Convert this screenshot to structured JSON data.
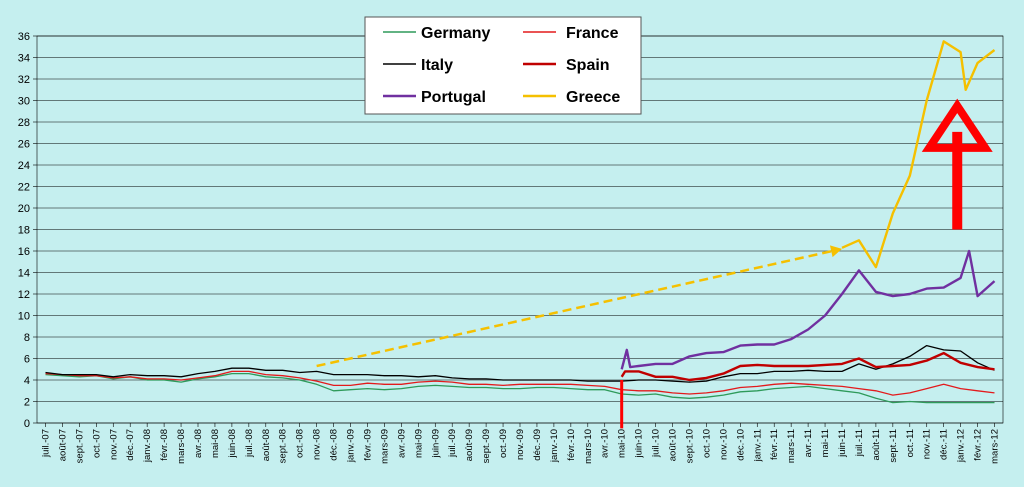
{
  "chart_data": {
    "type": "line",
    "title": "",
    "xlabel": "",
    "ylabel": "",
    "ylim": [
      0,
      36
    ],
    "yticks": [
      0,
      2,
      4,
      6,
      8,
      10,
      12,
      14,
      16,
      18,
      20,
      22,
      24,
      26,
      28,
      30,
      32,
      34,
      36
    ],
    "grid": true,
    "legend_position": "top-center",
    "x_labels": [
      "juil.-07",
      "août-07",
      "sept.-07",
      "oct.-07",
      "nov.-07",
      "déc.-07",
      "janv.-08",
      "févr.-08",
      "mars-08",
      "avr.-08",
      "mai-08",
      "juin-08",
      "juil.-08",
      "août-08",
      "sept.-08",
      "oct.-08",
      "nov.-08",
      "déc.-08",
      "janv.-09",
      "févr.-09",
      "mars-09",
      "avr.-09",
      "mai-09",
      "juin-09",
      "juil.-09",
      "août-09",
      "sept.-09",
      "oct.-09",
      "nov.-09",
      "déc.-09",
      "janv.-10",
      "févr.-10",
      "mars-10",
      "avr.-10",
      "mai-10",
      "juin-10",
      "juil.-10",
      "août-10",
      "sept.-10",
      "oct.-10",
      "nov.-10",
      "déc.-10",
      "janv.-11",
      "févr.-11",
      "mars-11",
      "avr.-11",
      "mai-11",
      "juin-11",
      "juil.-11",
      "août-11",
      "sept.-11",
      "oct.-11",
      "nov.-11",
      "déc.-11",
      "janv.-12",
      "févr.-12",
      "mars-12"
    ],
    "series": [
      {
        "name": "Germany",
        "color": "#2e9a5a",
        "width": 1.3,
        "points": [
          [
            0,
            4.5
          ],
          [
            1,
            4.4
          ],
          [
            2,
            4.3
          ],
          [
            3,
            4.4
          ],
          [
            4,
            4.1
          ],
          [
            5,
            4.3
          ],
          [
            6,
            4.0
          ],
          [
            7,
            4.0
          ],
          [
            8,
            3.8
          ],
          [
            9,
            4.1
          ],
          [
            10,
            4.3
          ],
          [
            11,
            4.6
          ],
          [
            12,
            4.6
          ],
          [
            13,
            4.3
          ],
          [
            14,
            4.2
          ],
          [
            15,
            4.0
          ],
          [
            16,
            3.6
          ],
          [
            17,
            3.0
          ],
          [
            18,
            3.1
          ],
          [
            19,
            3.2
          ],
          [
            20,
            3.1
          ],
          [
            21,
            3.2
          ],
          [
            22,
            3.4
          ],
          [
            23,
            3.5
          ],
          [
            24,
            3.4
          ],
          [
            25,
            3.3
          ],
          [
            26,
            3.3
          ],
          [
            27,
            3.2
          ],
          [
            28,
            3.2
          ],
          [
            29,
            3.3
          ],
          [
            30,
            3.3
          ],
          [
            31,
            3.2
          ],
          [
            32,
            3.1
          ],
          [
            33,
            3.1
          ],
          [
            34,
            2.7
          ],
          [
            35,
            2.6
          ],
          [
            36,
            2.7
          ],
          [
            37,
            2.4
          ],
          [
            38,
            2.3
          ],
          [
            39,
            2.4
          ],
          [
            40,
            2.6
          ],
          [
            41,
            2.9
          ],
          [
            42,
            3.0
          ],
          [
            43,
            3.2
          ],
          [
            44,
            3.3
          ],
          [
            45,
            3.4
          ],
          [
            46,
            3.2
          ],
          [
            47,
            3.0
          ],
          [
            48,
            2.8
          ],
          [
            49,
            2.3
          ],
          [
            50,
            1.9
          ],
          [
            51,
            2.0
          ],
          [
            52,
            1.9
          ],
          [
            53,
            1.9
          ],
          [
            54,
            1.9
          ],
          [
            55,
            1.9
          ],
          [
            56,
            1.9
          ]
        ]
      },
      {
        "name": "France",
        "color": "#e31a1c",
        "width": 1.3,
        "points": [
          [
            0,
            4.6
          ],
          [
            1,
            4.5
          ],
          [
            2,
            4.4
          ],
          [
            3,
            4.4
          ],
          [
            4,
            4.2
          ],
          [
            5,
            4.3
          ],
          [
            6,
            4.1
          ],
          [
            7,
            4.1
          ],
          [
            8,
            4.0
          ],
          [
            9,
            4.2
          ],
          [
            10,
            4.4
          ],
          [
            11,
            4.8
          ],
          [
            12,
            4.8
          ],
          [
            13,
            4.5
          ],
          [
            14,
            4.4
          ],
          [
            15,
            4.2
          ],
          [
            16,
            3.9
          ],
          [
            17,
            3.5
          ],
          [
            18,
            3.5
          ],
          [
            19,
            3.7
          ],
          [
            20,
            3.6
          ],
          [
            21,
            3.6
          ],
          [
            22,
            3.8
          ],
          [
            23,
            3.9
          ],
          [
            24,
            3.8
          ],
          [
            25,
            3.6
          ],
          [
            26,
            3.6
          ],
          [
            27,
            3.5
          ],
          [
            28,
            3.6
          ],
          [
            29,
            3.6
          ],
          [
            30,
            3.6
          ],
          [
            31,
            3.6
          ],
          [
            32,
            3.5
          ],
          [
            33,
            3.4
          ],
          [
            34,
            3.1
          ],
          [
            35,
            3.0
          ],
          [
            36,
            3.0
          ],
          [
            37,
            2.8
          ],
          [
            38,
            2.7
          ],
          [
            39,
            2.8
          ],
          [
            40,
            3.0
          ],
          [
            41,
            3.3
          ],
          [
            42,
            3.4
          ],
          [
            43,
            3.6
          ],
          [
            44,
            3.7
          ],
          [
            45,
            3.6
          ],
          [
            46,
            3.5
          ],
          [
            47,
            3.4
          ],
          [
            48,
            3.2
          ],
          [
            49,
            3.0
          ],
          [
            50,
            2.6
          ],
          [
            51,
            2.8
          ],
          [
            52,
            3.2
          ],
          [
            53,
            3.6
          ],
          [
            54,
            3.2
          ],
          [
            55,
            3.0
          ],
          [
            56,
            2.8
          ]
        ]
      },
      {
        "name": "Italy",
        "color": "#000000",
        "width": 1.3,
        "points": [
          [
            0,
            4.7
          ],
          [
            1,
            4.5
          ],
          [
            2,
            4.5
          ],
          [
            3,
            4.5
          ],
          [
            4,
            4.3
          ],
          [
            5,
            4.5
          ],
          [
            6,
            4.4
          ],
          [
            7,
            4.4
          ],
          [
            8,
            4.3
          ],
          [
            9,
            4.6
          ],
          [
            10,
            4.8
          ],
          [
            11,
            5.1
          ],
          [
            12,
            5.1
          ],
          [
            13,
            4.9
          ],
          [
            14,
            4.9
          ],
          [
            15,
            4.7
          ],
          [
            16,
            4.8
          ],
          [
            17,
            4.5
          ],
          [
            18,
            4.5
          ],
          [
            19,
            4.5
          ],
          [
            20,
            4.4
          ],
          [
            21,
            4.4
          ],
          [
            22,
            4.3
          ],
          [
            23,
            4.4
          ],
          [
            24,
            4.2
          ],
          [
            25,
            4.1
          ],
          [
            26,
            4.1
          ],
          [
            27,
            4.0
          ],
          [
            28,
            4.0
          ],
          [
            29,
            4.0
          ],
          [
            30,
            4.0
          ],
          [
            31,
            4.0
          ],
          [
            32,
            3.9
          ],
          [
            33,
            3.9
          ],
          [
            34,
            3.9
          ],
          [
            35,
            4.0
          ],
          [
            36,
            4.0
          ],
          [
            37,
            3.9
          ],
          [
            38,
            3.8
          ],
          [
            39,
            3.9
          ],
          [
            40,
            4.3
          ],
          [
            41,
            4.6
          ],
          [
            42,
            4.6
          ],
          [
            43,
            4.8
          ],
          [
            44,
            4.8
          ],
          [
            45,
            4.9
          ],
          [
            46,
            4.8
          ],
          [
            47,
            4.8
          ],
          [
            48,
            5.5
          ],
          [
            49,
            5.0
          ],
          [
            50,
            5.5
          ],
          [
            51,
            6.2
          ],
          [
            52,
            7.2
          ],
          [
            53,
            6.8
          ],
          [
            54,
            6.7
          ],
          [
            55,
            5.6
          ],
          [
            56,
            4.9
          ]
        ]
      },
      {
        "name": "Spain",
        "color": "#c00000",
        "width": 2.4,
        "points": [
          [
            34,
            4.3
          ],
          [
            34.2,
            4.8
          ],
          [
            35,
            4.8
          ],
          [
            36,
            4.3
          ],
          [
            37,
            4.3
          ],
          [
            38,
            4.0
          ],
          [
            39,
            4.2
          ],
          [
            40,
            4.6
          ],
          [
            41,
            5.3
          ],
          [
            42,
            5.4
          ],
          [
            43,
            5.3
          ],
          [
            44,
            5.3
          ],
          [
            45,
            5.3
          ],
          [
            46,
            5.4
          ],
          [
            47,
            5.5
          ],
          [
            48,
            6.0
          ],
          [
            49,
            5.2
          ],
          [
            50,
            5.3
          ],
          [
            51,
            5.4
          ],
          [
            52,
            5.8
          ],
          [
            53,
            6.5
          ],
          [
            54,
            5.6
          ],
          [
            55,
            5.2
          ],
          [
            56,
            5.0
          ]
        ]
      },
      {
        "name": "Portugal",
        "color": "#7030a0",
        "width": 2.4,
        "points": [
          [
            34,
            5.0
          ],
          [
            34.3,
            6.8
          ],
          [
            34.5,
            5.2
          ],
          [
            35,
            5.3
          ],
          [
            36,
            5.5
          ],
          [
            37,
            5.5
          ],
          [
            38,
            6.2
          ],
          [
            39,
            6.5
          ],
          [
            40,
            6.6
          ],
          [
            41,
            7.2
          ],
          [
            42,
            7.3
          ],
          [
            43,
            7.3
          ],
          [
            44,
            7.8
          ],
          [
            45,
            8.7
          ],
          [
            46,
            10.0
          ],
          [
            47,
            12.0
          ],
          [
            48,
            14.2
          ],
          [
            49,
            12.2
          ],
          [
            50,
            11.8
          ],
          [
            51,
            12.0
          ],
          [
            52,
            12.5
          ],
          [
            53,
            12.6
          ],
          [
            54,
            13.5
          ],
          [
            54.5,
            16.0
          ],
          [
            55,
            11.8
          ],
          [
            56,
            13.2
          ]
        ]
      },
      {
        "name": "Greece",
        "color": "#f5c000",
        "width": 2.4,
        "points": [
          [
            47,
            16.3
          ],
          [
            48,
            17.0
          ],
          [
            49,
            14.5
          ],
          [
            50,
            19.5
          ],
          [
            51,
            23.0
          ],
          [
            52,
            30.0
          ],
          [
            53,
            35.5
          ],
          [
            54,
            34.5
          ],
          [
            54.3,
            31.0
          ],
          [
            55,
            33.5
          ],
          [
            56,
            34.7
          ]
        ]
      }
    ],
    "annotations": [
      {
        "kind": "dashed-arrow",
        "color": "#f5c000",
        "from": [
          16,
          5.3
        ],
        "to": [
          47,
          16.2
        ]
      },
      {
        "kind": "up-arrow",
        "color": "#ff0000",
        "x": 53.8,
        "y_from": 18,
        "y_to": 29.5
      },
      {
        "kind": "tick-mark",
        "color": "#ff0000",
        "x": 34,
        "y_from": 4.0,
        "y_to": -0.5
      }
    ]
  },
  "legend": {
    "germany": "Germany",
    "france": "France",
    "italy": "Italy",
    "spain": "Spain",
    "portugal": "Portugal",
    "greece": "Greece"
  }
}
